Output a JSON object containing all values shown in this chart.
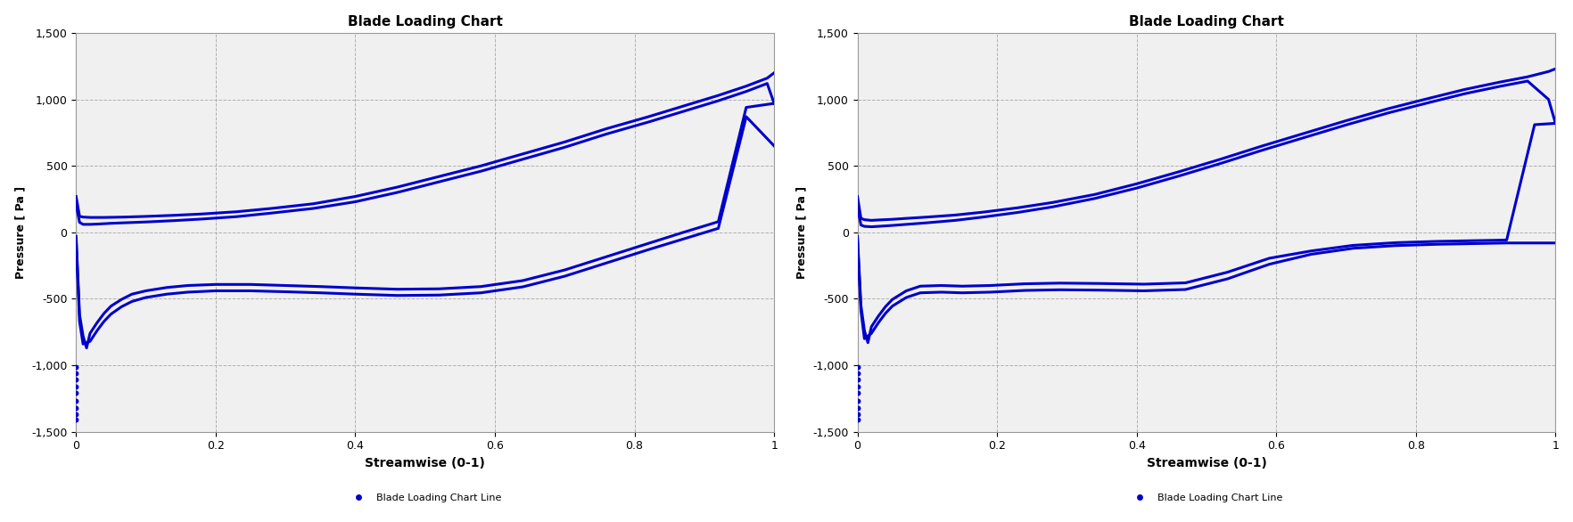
{
  "title": "Blade Loading Chart",
  "xlabel": "Streamwise (0-1)",
  "ylabel": "Pressure [ Pa ]",
  "legend_label": "Blade Loading Chart Line",
  "xlim": [
    0,
    1
  ],
  "ylim": [
    -1500,
    1500
  ],
  "yticks": [
    -1500,
    -1000,
    -500,
    0,
    500,
    1000,
    1500
  ],
  "xticks": [
    0,
    0.2,
    0.4,
    0.6,
    0.8,
    1.0
  ],
  "line_color": "#0000CC",
  "marker_color": "#0000CC",
  "bg_color": "#ffffff",
  "grid_color": "#aaaaaa",
  "chart1": {
    "upper_x": [
      0.0,
      0.005,
      0.01,
      0.02,
      0.03,
      0.04,
      0.05,
      0.07,
      0.1,
      0.14,
      0.18,
      0.23,
      0.28,
      0.34,
      0.4,
      0.46,
      0.52,
      0.58,
      0.64,
      0.7,
      0.76,
      0.82,
      0.87,
      0.92,
      0.96,
      0.99,
      1.0
    ],
    "upper_y": [
      270,
      120,
      115,
      112,
      112,
      112,
      113,
      115,
      120,
      128,
      138,
      155,
      180,
      215,
      270,
      340,
      420,
      500,
      590,
      680,
      780,
      870,
      950,
      1030,
      1100,
      1160,
      1200
    ],
    "upper2_x": [
      0.0,
      0.005,
      0.01,
      0.02,
      0.03,
      0.04,
      0.05,
      0.07,
      0.1,
      0.14,
      0.18,
      0.23,
      0.28,
      0.34,
      0.4,
      0.46,
      0.52,
      0.58,
      0.64,
      0.7,
      0.76,
      0.82,
      0.87,
      0.92,
      0.96,
      0.99,
      1.0
    ],
    "upper2_y": [
      210,
      75,
      60,
      60,
      62,
      65,
      68,
      72,
      78,
      88,
      100,
      118,
      145,
      180,
      230,
      300,
      380,
      460,
      550,
      640,
      740,
      830,
      910,
      990,
      1060,
      1120,
      970
    ],
    "lower_x": [
      0.0,
      0.005,
      0.01,
      0.02,
      0.03,
      0.04,
      0.05,
      0.065,
      0.08,
      0.1,
      0.13,
      0.16,
      0.2,
      0.25,
      0.3,
      0.35,
      0.4,
      0.46,
      0.52,
      0.58,
      0.64,
      0.7,
      0.76,
      0.82,
      0.87,
      0.92,
      0.96,
      1.0
    ],
    "lower_y": [
      -50,
      -670,
      -840,
      -820,
      -740,
      -670,
      -615,
      -560,
      -520,
      -490,
      -465,
      -450,
      -440,
      -440,
      -447,
      -455,
      -465,
      -475,
      -472,
      -455,
      -410,
      -330,
      -230,
      -130,
      -50,
      30,
      870,
      650
    ],
    "lower2_x": [
      0.0,
      0.005,
      0.01,
      0.015,
      0.02,
      0.03,
      0.04,
      0.05,
      0.065,
      0.08,
      0.1,
      0.13,
      0.16,
      0.2,
      0.25,
      0.3,
      0.35,
      0.4,
      0.46,
      0.52,
      0.58,
      0.64,
      0.7,
      0.76,
      0.82,
      0.87,
      0.92,
      0.96,
      1.0
    ],
    "lower2_y": [
      -30,
      -620,
      -780,
      -870,
      -760,
      -680,
      -610,
      -555,
      -505,
      -465,
      -440,
      -415,
      -400,
      -392,
      -392,
      -400,
      -408,
      -418,
      -428,
      -425,
      -408,
      -363,
      -283,
      -183,
      -83,
      0,
      80,
      940,
      970
    ],
    "scatter_x": [
      0.0,
      0.0,
      0.0,
      0.0,
      0.0,
      0.0,
      0.0,
      0.0,
      0.0
    ],
    "scatter_y": [
      -1010,
      -1060,
      -1110,
      -1160,
      -1210,
      -1270,
      -1320,
      -1370,
      -1410
    ]
  },
  "chart2": {
    "upper_x": [
      0.0,
      0.005,
      0.01,
      0.02,
      0.03,
      0.05,
      0.07,
      0.1,
      0.14,
      0.18,
      0.23,
      0.28,
      0.34,
      0.4,
      0.46,
      0.52,
      0.58,
      0.64,
      0.7,
      0.76,
      0.82,
      0.87,
      0.92,
      0.96,
      0.99,
      1.0
    ],
    "upper_y": [
      270,
      105,
      95,
      90,
      93,
      98,
      105,
      115,
      130,
      152,
      185,
      225,
      285,
      365,
      455,
      550,
      650,
      745,
      840,
      930,
      1010,
      1075,
      1130,
      1170,
      1210,
      1230
    ],
    "upper2_x": [
      0.0,
      0.005,
      0.01,
      0.02,
      0.03,
      0.05,
      0.07,
      0.1,
      0.14,
      0.18,
      0.23,
      0.28,
      0.34,
      0.4,
      0.46,
      0.52,
      0.58,
      0.64,
      0.7,
      0.76,
      0.82,
      0.87,
      0.92,
      0.96,
      0.99,
      1.0
    ],
    "upper2_y": [
      190,
      55,
      45,
      42,
      45,
      52,
      60,
      72,
      90,
      115,
      150,
      192,
      255,
      333,
      423,
      518,
      618,
      713,
      808,
      898,
      978,
      1043,
      1098,
      1138,
      1000,
      820
    ],
    "lower_x": [
      0.0,
      0.005,
      0.01,
      0.02,
      0.03,
      0.04,
      0.05,
      0.07,
      0.09,
      0.12,
      0.15,
      0.19,
      0.24,
      0.29,
      0.35,
      0.41,
      0.47,
      0.53,
      0.59,
      0.65,
      0.71,
      0.77,
      0.83,
      0.88,
      0.93,
      0.97,
      1.0
    ],
    "lower_y": [
      -50,
      -590,
      -800,
      -760,
      -680,
      -610,
      -555,
      -490,
      -455,
      -450,
      -455,
      -450,
      -437,
      -432,
      -435,
      -440,
      -430,
      -350,
      -240,
      -165,
      -120,
      -100,
      -90,
      -85,
      -80,
      -80,
      -80
    ],
    "lower2_x": [
      0.0,
      0.005,
      0.01,
      0.015,
      0.02,
      0.03,
      0.04,
      0.05,
      0.07,
      0.09,
      0.12,
      0.15,
      0.19,
      0.24,
      0.29,
      0.35,
      0.41,
      0.47,
      0.53,
      0.59,
      0.65,
      0.71,
      0.77,
      0.83,
      0.88,
      0.93,
      0.97,
      1.0
    ],
    "lower2_y": [
      -30,
      -550,
      -740,
      -830,
      -710,
      -630,
      -560,
      -505,
      -440,
      -405,
      -400,
      -405,
      -400,
      -387,
      -382,
      -385,
      -390,
      -380,
      -300,
      -195,
      -140,
      -98,
      -78,
      -68,
      -63,
      -58,
      810,
      820
    ],
    "scatter_x": [
      0.0,
      0.0,
      0.0,
      0.0,
      0.0,
      0.0,
      0.0,
      0.0,
      0.0
    ],
    "scatter_y": [
      -1010,
      -1060,
      -1110,
      -1160,
      -1210,
      -1270,
      -1320,
      -1370,
      -1410
    ]
  }
}
